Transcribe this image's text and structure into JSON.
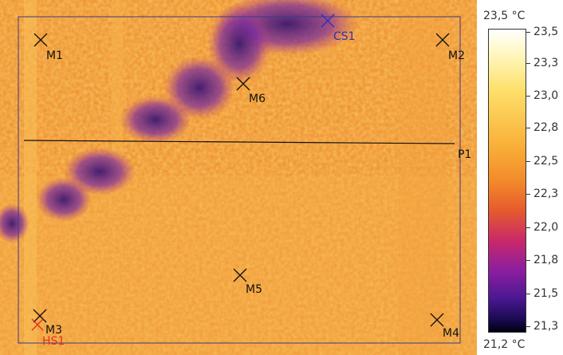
{
  "thermal_image": {
    "markers": [
      {
        "id": "M1",
        "kind": "point"
      },
      {
        "id": "M2",
        "kind": "point"
      },
      {
        "id": "M3",
        "kind": "point"
      },
      {
        "id": "M4",
        "kind": "point"
      },
      {
        "id": "M5",
        "kind": "point"
      },
      {
        "id": "M6",
        "kind": "point"
      },
      {
        "id": "CS1",
        "kind": "cold-spot"
      },
      {
        "id": "HS1",
        "kind": "hot-spot"
      }
    ],
    "profile_line": "P1"
  },
  "scale": {
    "max_label": "23,5 °C",
    "min_label": "21,2 °C",
    "ticks": [
      "23,5",
      "23,3",
      "23,0",
      "22,8",
      "22,5",
      "22,3",
      "22,0",
      "21,8",
      "21,5",
      "21,3"
    ],
    "colors": {
      "hot": "#ffffff",
      "mid": "#f38a2a",
      "cold": "#000010",
      "hot_marker": "#e03020",
      "cold_marker": "#3030b0"
    }
  }
}
